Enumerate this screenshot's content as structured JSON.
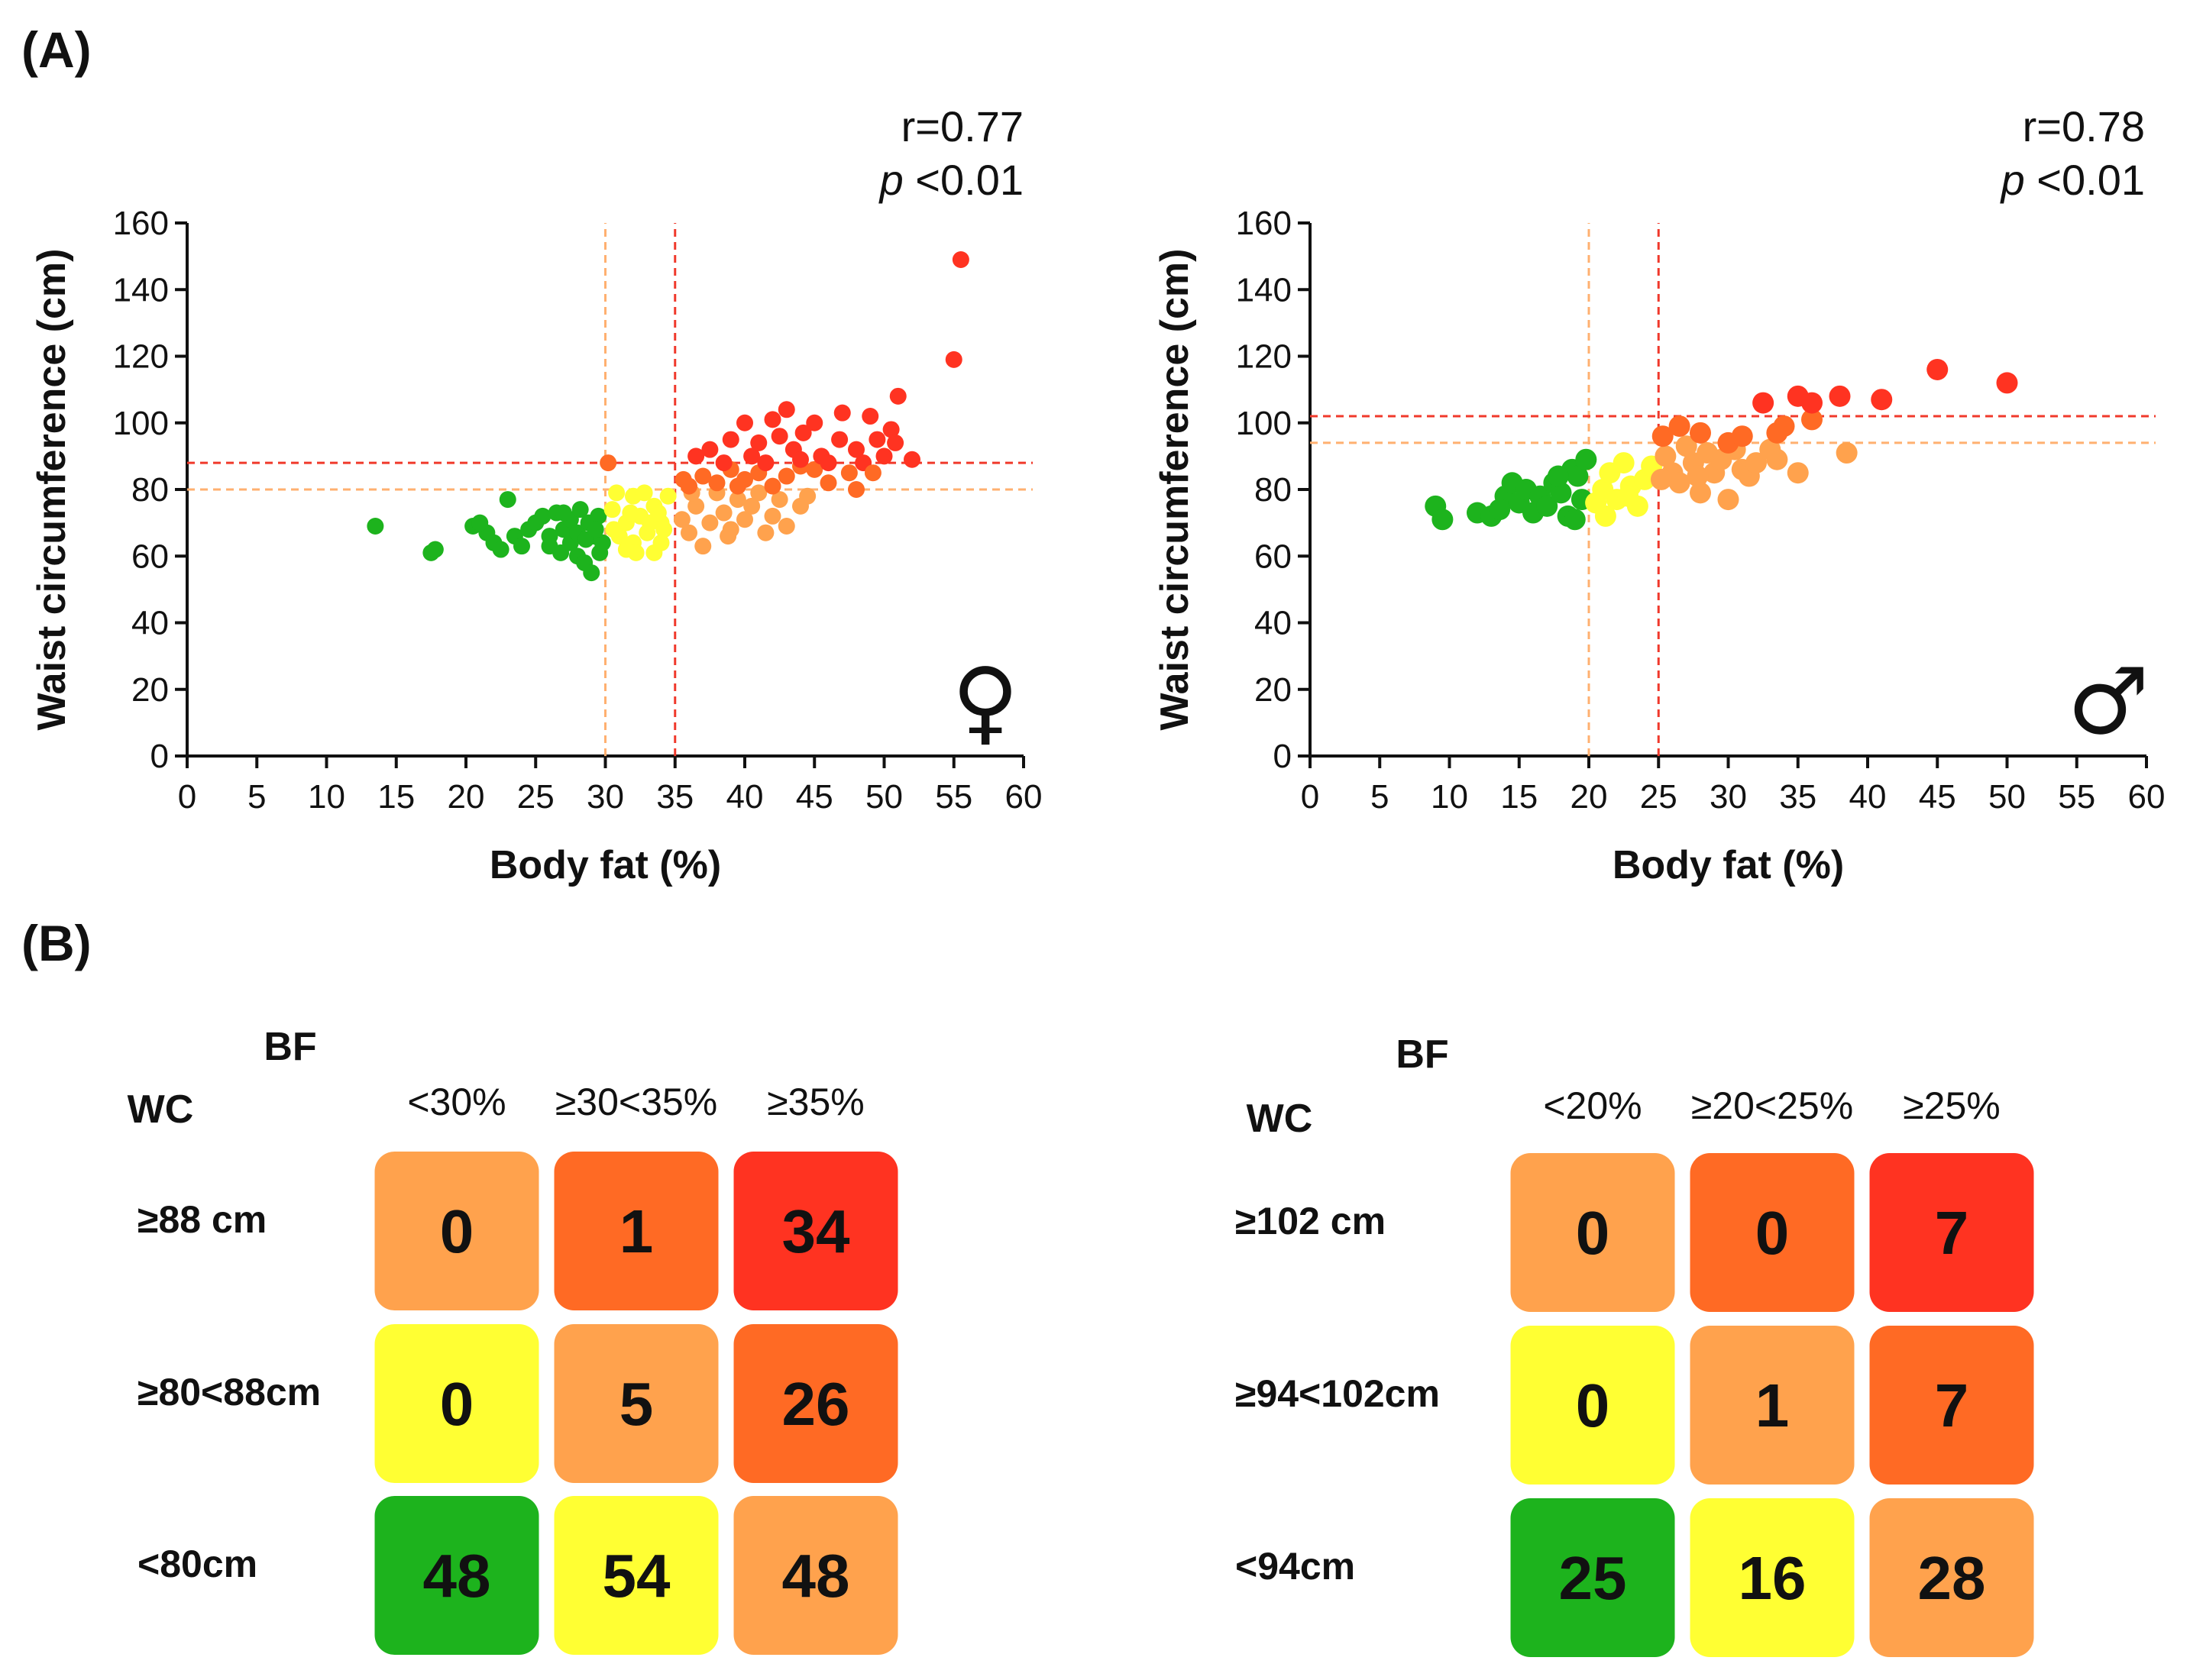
{
  "panel_a_label": "(A)",
  "panel_b_label": "(B)",
  "colors": {
    "green": "#1db31d",
    "yellow": "#ffff33",
    "light_orange": "#ffa24d",
    "orange": "#ff6a24",
    "red": "#ff3321",
    "threshold": "#f0392b"
  },
  "chart_data": [
    {
      "type": "scatter",
      "sex": "female",
      "sex_symbol": "♀",
      "stat_r": "r=0.77",
      "stat_p_letter": "p",
      "stat_p_value": " <0.01",
      "xlabel": "Body fat (%)",
      "ylabel": "Waist circumference (cm)",
      "xlim": [
        0,
        60
      ],
      "ylim": [
        0,
        160
      ],
      "xticks": [
        0,
        5,
        10,
        15,
        20,
        25,
        30,
        35,
        40,
        45,
        50,
        55,
        60
      ],
      "yticks": [
        0,
        20,
        40,
        60,
        80,
        100,
        120,
        140,
        160
      ],
      "thresholds_x": [
        30,
        35
      ],
      "thresholds_y": [
        80,
        88
      ],
      "bf_cuts": [
        30,
        35
      ],
      "wc_cuts": [
        80,
        88
      ],
      "points": [
        [
          13.5,
          69
        ],
        [
          17.5,
          61
        ],
        [
          17.8,
          62
        ],
        [
          20.5,
          69
        ],
        [
          21.5,
          67
        ],
        [
          21,
          70
        ],
        [
          22,
          64
        ],
        [
          22.5,
          62
        ],
        [
          23,
          77
        ],
        [
          23.5,
          66
        ],
        [
          24,
          63
        ],
        [
          24.5,
          68
        ],
        [
          25,
          70
        ],
        [
          25.5,
          72
        ],
        [
          26,
          66
        ],
        [
          26.5,
          73
        ],
        [
          26,
          63
        ],
        [
          27,
          68
        ],
        [
          27.5,
          71
        ],
        [
          27.5,
          64
        ],
        [
          28,
          67
        ],
        [
          28,
          60
        ],
        [
          28.2,
          74
        ],
        [
          28.5,
          58
        ],
        [
          28.8,
          70
        ],
        [
          29,
          55
        ],
        [
          29.2,
          66
        ],
        [
          29.5,
          72
        ],
        [
          29.6,
          61
        ],
        [
          29.8,
          64
        ],
        [
          27,
          73
        ],
        [
          28.6,
          65
        ],
        [
          29.3,
          68
        ],
        [
          26.8,
          61
        ],
        [
          30.5,
          74
        ],
        [
          31,
          66
        ],
        [
          31.5,
          70
        ],
        [
          31.5,
          62
        ],
        [
          32,
          78
        ],
        [
          32,
          64
        ],
        [
          32.5,
          72
        ],
        [
          33,
          67
        ],
        [
          33.5,
          61
        ],
        [
          33.5,
          75
        ],
        [
          34,
          70
        ],
        [
          34,
          64
        ],
        [
          34.5,
          78
        ],
        [
          30.8,
          79
        ],
        [
          31.8,
          73
        ],
        [
          32.8,
          79
        ],
        [
          33.2,
          70
        ],
        [
          34.2,
          68
        ],
        [
          30.6,
          68
        ],
        [
          32.2,
          61
        ],
        [
          33.8,
          73
        ],
        [
          35.5,
          71
        ],
        [
          36,
          67
        ],
        [
          36.5,
          75
        ],
        [
          37,
          63
        ],
        [
          37.5,
          70
        ],
        [
          38,
          79
        ],
        [
          38.5,
          73
        ],
        [
          39,
          68
        ],
        [
          39.5,
          77
        ],
        [
          40,
          71
        ],
        [
          40.5,
          75
        ],
        [
          41,
          79
        ],
        [
          42,
          72
        ],
        [
          42.5,
          77
        ],
        [
          43,
          69
        ],
        [
          44,
          75
        ],
        [
          48,
          80
        ],
        [
          36.2,
          79
        ],
        [
          38.8,
          66
        ],
        [
          41.5,
          67
        ],
        [
          44.5,
          78
        ],
        [
          36,
          81
        ],
        [
          37,
          84
        ],
        [
          38,
          82
        ],
        [
          39,
          86
        ],
        [
          40,
          83
        ],
        [
          41,
          85
        ],
        [
          42,
          81
        ],
        [
          43,
          84
        ],
        [
          44,
          87
        ],
        [
          45,
          86
        ],
        [
          46,
          82
        ],
        [
          35.6,
          83
        ],
        [
          39.5,
          81
        ],
        [
          30.2,
          88
        ],
        [
          36.5,
          90
        ],
        [
          37.5,
          92
        ],
        [
          38.5,
          88
        ],
        [
          39,
          95
        ],
        [
          40,
          100
        ],
        [
          40.5,
          90
        ],
        [
          41,
          94
        ],
        [
          41.5,
          88
        ],
        [
          42,
          101
        ],
        [
          42.5,
          96
        ],
        [
          43,
          104
        ],
        [
          43.5,
          92
        ],
        [
          44,
          89
        ],
        [
          45,
          100
        ],
        [
          45.5,
          90
        ],
        [
          46,
          88
        ],
        [
          47,
          103
        ],
        [
          48,
          92
        ],
        [
          48.5,
          88
        ],
        [
          49,
          102
        ],
        [
          49.5,
          95
        ],
        [
          50,
          90
        ],
        [
          50.5,
          98
        ],
        [
          51,
          108
        ],
        [
          52,
          89
        ],
        [
          49.2,
          85
        ],
        [
          44.2,
          97
        ],
        [
          46.8,
          95
        ],
        [
          47.5,
          85
        ],
        [
          50.8,
          94
        ],
        [
          55,
          119
        ],
        [
          55.5,
          149
        ]
      ]
    },
    {
      "type": "scatter",
      "sex": "male",
      "sex_symbol": "♂",
      "stat_r": "r=0.78",
      "stat_p_letter": "p",
      "stat_p_value": " <0.01",
      "xlabel": "Body fat (%)",
      "ylabel": "Waist circumference (cm)",
      "xlim": [
        0,
        60
      ],
      "ylim": [
        0,
        160
      ],
      "xticks": [
        0,
        5,
        10,
        15,
        20,
        25,
        30,
        35,
        40,
        45,
        50,
        55,
        60
      ],
      "yticks": [
        0,
        20,
        40,
        60,
        80,
        100,
        120,
        140,
        160
      ],
      "thresholds_x": [
        20,
        25
      ],
      "thresholds_y": [
        94,
        102
      ],
      "bf_cuts": [
        20,
        25
      ],
      "wc_cuts": [
        94,
        102
      ],
      "points": [
        [
          9,
          75
        ],
        [
          9.5,
          71
        ],
        [
          12,
          73
        ],
        [
          13,
          72
        ],
        [
          14,
          78
        ],
        [
          14.5,
          82
        ],
        [
          15,
          76
        ],
        [
          15.5,
          80
        ],
        [
          16,
          73
        ],
        [
          16.5,
          78
        ],
        [
          17,
          75
        ],
        [
          17.5,
          82
        ],
        [
          18,
          79
        ],
        [
          18.5,
          72
        ],
        [
          18.8,
          86
        ],
        [
          19,
          71
        ],
        [
          19.2,
          84
        ],
        [
          19.5,
          77
        ],
        [
          19.8,
          89
        ],
        [
          17.8,
          84
        ],
        [
          13.6,
          74
        ],
        [
          20.5,
          76
        ],
        [
          21,
          80
        ],
        [
          21.5,
          85
        ],
        [
          22,
          77
        ],
        [
          22.5,
          88
        ],
        [
          23,
          81
        ],
        [
          23.5,
          75
        ],
        [
          24,
          83
        ],
        [
          24.5,
          87
        ],
        [
          21.2,
          72
        ],
        [
          22.8,
          78
        ],
        [
          25.5,
          90
        ],
        [
          26,
          85
        ],
        [
          26.5,
          82
        ],
        [
          27,
          93
        ],
        [
          27.5,
          88
        ],
        [
          28,
          79
        ],
        [
          28.5,
          91
        ],
        [
          29,
          85
        ],
        [
          29.5,
          89
        ],
        [
          30,
          77
        ],
        [
          30.5,
          92
        ],
        [
          31,
          86
        ],
        [
          31.5,
          84
        ],
        [
          32,
          88
        ],
        [
          33,
          92
        ],
        [
          35,
          85
        ],
        [
          38.5,
          91
        ],
        [
          25.2,
          83
        ],
        [
          27.8,
          84
        ],
        [
          33.5,
          89
        ],
        [
          25.3,
          96
        ],
        [
          26.5,
          99
        ],
        [
          28,
          97
        ],
        [
          30,
          94
        ],
        [
          31,
          96
        ],
        [
          33.5,
          97
        ],
        [
          34,
          99
        ],
        [
          36,
          101
        ],
        [
          32.5,
          106
        ],
        [
          35,
          108
        ],
        [
          36,
          106
        ],
        [
          38,
          108
        ],
        [
          41,
          107
        ],
        [
          45,
          116
        ],
        [
          50,
          112
        ]
      ]
    }
  ],
  "tables": [
    {
      "bf_label": "BF",
      "wc_label": "WC",
      "col_headers": [
        "<30%",
        "≥30<35%",
        "≥35%"
      ],
      "rows": [
        {
          "label": "≥88 cm",
          "values": [
            "0",
            "1",
            "34"
          ]
        },
        {
          "label": "≥80<88cm",
          "values": [
            "0",
            "5",
            "26"
          ]
        },
        {
          "label": "<80cm",
          "values": [
            "48",
            "54",
            "48"
          ]
        }
      ]
    },
    {
      "bf_label": "BF",
      "wc_label": "WC",
      "col_headers": [
        "<20%",
        "≥20<25%",
        "≥25%"
      ],
      "rows": [
        {
          "label": "≥102 cm",
          "values": [
            "0",
            "0",
            "7"
          ]
        },
        {
          "label": "≥94<102cm",
          "values": [
            "0",
            "1",
            "7"
          ]
        },
        {
          "label": "<94cm",
          "values": [
            "25",
            "16",
            "28"
          ]
        }
      ]
    }
  ]
}
